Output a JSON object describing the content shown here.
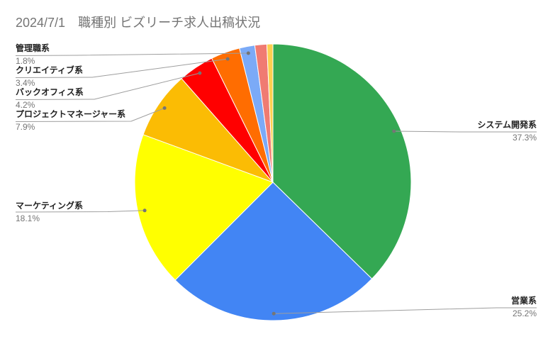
{
  "title": "2024/7/1　職種別 ビズリーチ求人出稿状況",
  "chart_data": {
    "type": "pie",
    "title": "2024/7/1　職種別 ビズリーチ求人出稿状況",
    "unit": "%",
    "start_angle": "top",
    "direction": "clockwise",
    "legend": "none",
    "total_percent": 100.0,
    "slices": [
      {
        "label": "システム開発系",
        "value": 37.3,
        "percent_label": "37.3%",
        "color": "#34A853",
        "label_side": "right"
      },
      {
        "label": "営業系",
        "value": 25.2,
        "percent_label": "25.2%",
        "color": "#4285F4",
        "label_side": "right"
      },
      {
        "label": "マーケティング系",
        "value": 18.1,
        "percent_label": "18.1%",
        "color": "#FFFF00",
        "label_side": "left"
      },
      {
        "label": "プロジェクトマネージャー系",
        "value": 7.9,
        "percent_label": "7.9%",
        "color": "#FBBC04",
        "label_side": "left"
      },
      {
        "label": "バックオフィス系",
        "value": 4.2,
        "percent_label": "4.2%",
        "color": "#FF0000",
        "label_side": "left"
      },
      {
        "label": "クリエイティブ系",
        "value": 3.4,
        "percent_label": "3.4%",
        "color": "#FF6D01",
        "label_side": "left"
      },
      {
        "label": "管理職系",
        "value": 1.8,
        "percent_label": "1.8%",
        "color": "#7BAAF7",
        "label_side": "left"
      },
      {
        "label": "",
        "value": 1.4,
        "percent_label": "",
        "color": "#F07B72",
        "label_side": "none"
      },
      {
        "label": "",
        "value": 0.7,
        "percent_label": "",
        "color": "#FCD04F",
        "label_side": "none"
      }
    ],
    "style_colors": {
      "title_text": "#757575",
      "label_text": "#212121",
      "percent_text": "#757575",
      "leader_line": "#9e9e9e",
      "leader_dot": "#757575",
      "slice_border": "#ffffff"
    }
  }
}
